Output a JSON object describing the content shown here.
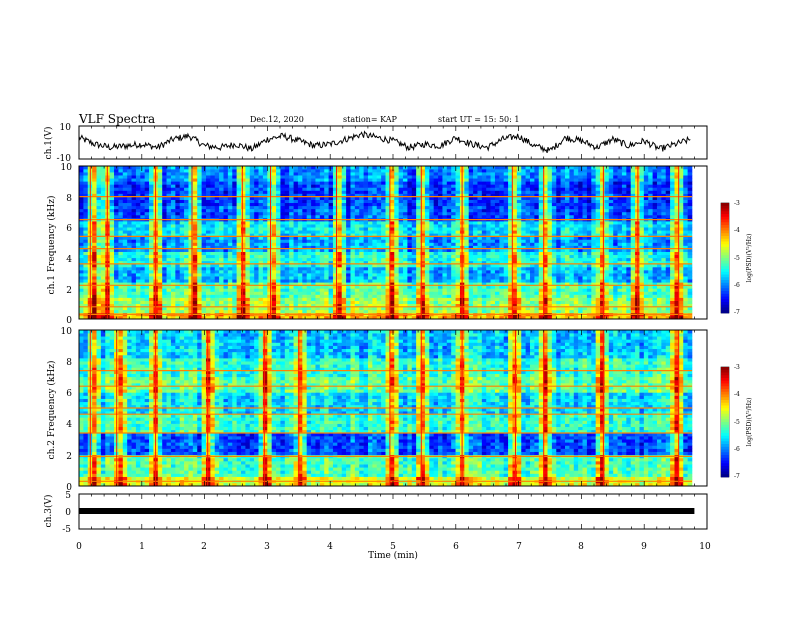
{
  "header": {
    "title": "VLF Spectra",
    "date": "Dec.12, 2020",
    "station": "station= KAP",
    "start": "start  UT =   15: 50: 1"
  },
  "chart_data": [
    {
      "id": "ch1-waveform",
      "type": "line",
      "ylabel": "ch.1(V)",
      "ylim": [
        -10,
        10
      ],
      "ytick_labels": [
        "10",
        "-10"
      ],
      "xlim": [
        0,
        10
      ],
      "series": [
        {
          "x": [
            0,
            0.25,
            0.5,
            0.75,
            1,
            1.25,
            1.5,
            1.75,
            2,
            2.25,
            2.5,
            2.75,
            3,
            3.25,
            3.5,
            3.75,
            4,
            4.25,
            4.5,
            4.75,
            5,
            5.25,
            5.5,
            5.75,
            6,
            6.25,
            6.5,
            6.75,
            7,
            7.25,
            7.5,
            7.75,
            8,
            8.25,
            8.5,
            8.75,
            9,
            9.25,
            9.5,
            9.75
          ],
          "values": [
            3,
            -1,
            -3,
            -2,
            -1,
            -3,
            2,
            4,
            -2,
            -3,
            -1,
            -4,
            2,
            4,
            1,
            -2,
            -1,
            2,
            5,
            3,
            1,
            -3,
            -1,
            -2,
            3,
            -1,
            -3,
            2,
            4,
            -2,
            -5,
            3,
            1,
            -3,
            2,
            -2,
            1,
            -4,
            -1,
            2
          ]
        }
      ]
    },
    {
      "id": "ch1-spectrogram",
      "type": "heatmap",
      "ylabel": "ch.1 Frequency (kHz)",
      "ylim": [
        0,
        10
      ],
      "ytick_labels": [
        "10",
        "8",
        "6",
        "4",
        "2",
        "0"
      ],
      "xlim": [
        0,
        10
      ],
      "colorbar": {
        "label": "log(PSD)(V²/Hz)",
        "range": [
          -7,
          -3
        ],
        "tick_labels": [
          "-3",
          "-4",
          "-5",
          "-6",
          "-7"
        ]
      },
      "band_levels_by_frequency_kHz": [
        {
          "from": 0.0,
          "to": 0.5,
          "level": -4.2
        },
        {
          "from": 0.5,
          "to": 1.5,
          "level": -4.9
        },
        {
          "from": 1.5,
          "to": 2.5,
          "level": -5.2
        },
        {
          "from": 2.5,
          "to": 3.5,
          "level": -5.8
        },
        {
          "from": 3.5,
          "to": 4.5,
          "level": -5.4
        },
        {
          "from": 4.5,
          "to": 5.5,
          "level": -5.9
        },
        {
          "from": 5.5,
          "to": 6.5,
          "level": -5.6
        },
        {
          "from": 6.5,
          "to": 7.5,
          "level": -6.2
        },
        {
          "from": 7.5,
          "to": 9.0,
          "level": -6.3
        },
        {
          "from": 9.0,
          "to": 10.0,
          "level": -6.0
        }
      ],
      "line_emissions_kHz": [
        0.3,
        0.8,
        2.2,
        3.6,
        4.6,
        5.4,
        6.5,
        8.0
      ],
      "line_level": -4.0,
      "impulse_times_min": [
        0.18,
        0.45,
        1.22,
        1.8,
        2.6,
        3.05,
        4.1,
        4.95,
        5.45,
        6.1,
        6.9,
        7.4,
        8.35,
        8.9,
        9.55
      ]
    },
    {
      "id": "ch2-spectrogram",
      "type": "heatmap",
      "ylabel": "ch.2 Frequency (kHz)",
      "ylim": [
        0,
        10
      ],
      "ytick_labels": [
        "10",
        "8",
        "6",
        "4",
        "2",
        "0"
      ],
      "xlim": [
        0,
        10
      ],
      "colorbar": {
        "label": "log(PSD)(V²/Hz)",
        "range": [
          -7,
          -3
        ],
        "tick_labels": [
          "-3",
          "-4",
          "-5",
          "-6",
          "-7"
        ]
      },
      "band_levels_by_frequency_kHz": [
        {
          "from": 0.0,
          "to": 0.6,
          "level": -4.6
        },
        {
          "from": 0.6,
          "to": 2.0,
          "level": -5.2
        },
        {
          "from": 2.0,
          "to": 3.4,
          "level": -6.2
        },
        {
          "from": 3.4,
          "to": 4.6,
          "level": -5.3
        },
        {
          "from": 4.6,
          "to": 6.0,
          "level": -5.6
        },
        {
          "from": 6.0,
          "to": 7.0,
          "level": -5.1
        },
        {
          "from": 7.0,
          "to": 8.2,
          "level": -5.3
        },
        {
          "from": 8.2,
          "to": 10.0,
          "level": -5.7
        }
      ],
      "line_emissions_kHz": [
        0.3,
        1.9,
        3.4,
        4.6,
        5.0,
        6.4,
        7.4
      ],
      "line_level": -4.0,
      "impulse_times_min": [
        0.18,
        0.6,
        1.22,
        2.05,
        2.95,
        3.5,
        4.95,
        5.45,
        6.1,
        6.95,
        7.4,
        8.35,
        9.55
      ]
    },
    {
      "id": "ch3-waveform",
      "type": "line",
      "ylabel": "ch.3(V)",
      "ylim": [
        -5,
        5
      ],
      "ytick_labels": [
        "5",
        "0",
        "-5"
      ],
      "xlim": [
        0,
        10
      ],
      "xlabel": "Time  (min)",
      "xtick_labels": [
        "0",
        "1",
        "2",
        "3",
        "4",
        "5",
        "6",
        "7",
        "8",
        "9",
        "10"
      ],
      "series": [
        {
          "x": [
            0,
            9.8
          ],
          "values": [
            0,
            0
          ]
        }
      ]
    }
  ]
}
